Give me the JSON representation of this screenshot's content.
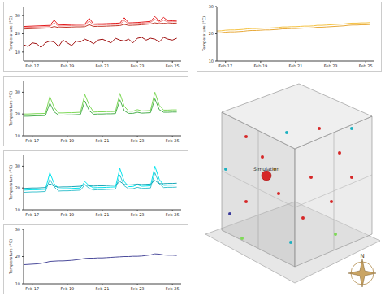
{
  "chart_data": [
    {
      "type": "line",
      "ylabel": "Temperature (°C)",
      "grid": false,
      "x": [
        16.5,
        16.75,
        17,
        17.25,
        17.5,
        17.75,
        18,
        18.25,
        18.5,
        18.75,
        19,
        19.25,
        19.5,
        19.75,
        20,
        20.25,
        20.5,
        20.75,
        21,
        21.25,
        21.5,
        21.75,
        22,
        22.25,
        22.5,
        22.75,
        23,
        23.25,
        23.5,
        23.75,
        24,
        24.25,
        24.5,
        24.75,
        25,
        25.25
      ],
      "xlim": [
        16.5,
        25.5
      ],
      "xticks": [
        {
          "value": 17,
          "label": "Feb 17"
        },
        {
          "value": 19,
          "label": "Feb 19"
        },
        {
          "value": 21,
          "label": "Feb 21"
        },
        {
          "value": 23,
          "label": "Feb 23"
        },
        {
          "value": 25,
          "label": "Feb 25"
        }
      ],
      "ylim": [
        5,
        35
      ],
      "yticks": [
        10,
        20,
        30
      ],
      "series": [
        {
          "color": "#e31a1c",
          "values": [
            24,
            24.1,
            24.2,
            24.3,
            24.4,
            24.5,
            24.6,
            27.5,
            24.8,
            24.9,
            25,
            25.1,
            25.2,
            25.2,
            25.3,
            28.5,
            25.4,
            25.5,
            25.5,
            25.6,
            25.7,
            25.8,
            25.9,
            28.8,
            26,
            26.1,
            26.2,
            26.4,
            26.6,
            26.8,
            29.5,
            27,
            29,
            27,
            27.2,
            27.3
          ]
        },
        {
          "color": "#f08080",
          "values": [
            23.4,
            23.5,
            23.6,
            23.7,
            23.8,
            23.9,
            24,
            26,
            24.2,
            24.3,
            24.4,
            24.5,
            24.6,
            24.6,
            24.7,
            27,
            24.8,
            24.9,
            24.9,
            25,
            25.1,
            25.2,
            25.3,
            27.2,
            25.4,
            25.5,
            25.6,
            25.8,
            26,
            26.2,
            28,
            26.4,
            27.5,
            26.4,
            26.6,
            26.7
          ]
        },
        {
          "color": "#c0392b",
          "values": [
            22.6,
            22.7,
            22.8,
            22.9,
            23,
            23.1,
            23.2,
            24,
            23.4,
            23.5,
            23.6,
            23.7,
            23.8,
            23.8,
            23.9,
            25,
            24,
            24.1,
            24.1,
            24.2,
            24.3,
            24.4,
            24.5,
            25.2,
            24.6,
            24.7,
            24.8,
            25,
            25.2,
            25.4,
            26,
            25.6,
            25.8,
            25.6,
            25.8,
            25.9
          ]
        },
        {
          "color": "#a01010",
          "values": [
            14,
            13,
            15,
            14.5,
            12.5,
            15,
            16,
            15.5,
            13,
            16.5,
            15,
            13.5,
            16,
            15.5,
            17,
            16,
            14.5,
            16.5,
            17,
            16,
            15,
            17.5,
            16.5,
            16,
            17,
            15,
            17.5,
            18,
            16.5,
            17.5,
            17,
            15.5,
            18,
            17,
            16.5,
            17.5
          ]
        }
      ]
    },
    {
      "type": "line",
      "ylabel": "Temperature (°C)",
      "grid": false,
      "x": [
        16.5,
        16.75,
        17,
        17.25,
        17.5,
        17.75,
        18,
        18.25,
        18.5,
        18.75,
        19,
        19.25,
        19.5,
        19.75,
        20,
        20.25,
        20.5,
        20.75,
        21,
        21.25,
        21.5,
        21.75,
        22,
        22.25,
        22.5,
        22.75,
        23,
        23.25,
        23.5,
        23.75,
        24,
        24.25,
        24.5,
        24.75,
        25,
        25.25
      ],
      "xlim": [
        16.5,
        25.5
      ],
      "xticks": [
        {
          "value": 17,
          "label": "Feb 17"
        },
        {
          "value": 19,
          "label": "Feb 19"
        },
        {
          "value": 21,
          "label": "Feb 21"
        },
        {
          "value": 23,
          "label": "Feb 23"
        },
        {
          "value": 25,
          "label": "Feb 25"
        }
      ],
      "ylim": [
        10,
        30
      ],
      "yticks": [
        10,
        20,
        30
      ],
      "series": [
        {
          "color": "#f5c242",
          "values": [
            21,
            21.1,
            21.3,
            21.4,
            21.4,
            21.5,
            21.6,
            21.8,
            21.9,
            21.9,
            22,
            22.1,
            22.1,
            22.2,
            22.3,
            22.5,
            22.5,
            22.6,
            22.6,
            22.7,
            22.8,
            22.8,
            22.9,
            23.1,
            23.1,
            23.2,
            23.3,
            23.4,
            23.5,
            23.6,
            23.8,
            23.9,
            23.9,
            24,
            24,
            24.1
          ]
        },
        {
          "color": "#e8a93a",
          "values": [
            20.3,
            20.4,
            20.6,
            20.7,
            20.7,
            20.8,
            20.9,
            21.1,
            21.2,
            21.2,
            21.3,
            21.4,
            21.4,
            21.5,
            21.6,
            21.8,
            21.8,
            21.9,
            21.9,
            22,
            22.1,
            22.1,
            22.2,
            22.4,
            22.4,
            22.5,
            22.6,
            22.7,
            22.8,
            22.9,
            23.1,
            23.2,
            23.2,
            23.3,
            23.3,
            23.4
          ]
        }
      ]
    },
    {
      "type": "line",
      "ylabel": "Temperature (°C)",
      "grid": false,
      "x": [
        16.5,
        16.75,
        17,
        17.25,
        17.5,
        17.75,
        18,
        18.25,
        18.5,
        18.75,
        19,
        19.25,
        19.5,
        19.75,
        20,
        20.25,
        20.5,
        20.75,
        21,
        21.25,
        21.5,
        21.75,
        22,
        22.25,
        22.5,
        22.75,
        23,
        23.25,
        23.5,
        23.75,
        24,
        24.25,
        24.5,
        24.75,
        25,
        25.25
      ],
      "xlim": [
        16.5,
        25.5
      ],
      "xticks": [
        {
          "value": 17,
          "label": "Feb 17"
        },
        {
          "value": 19,
          "label": "Feb 19"
        },
        {
          "value": 21,
          "label": "Feb 21"
        },
        {
          "value": 23,
          "label": "Feb 23"
        },
        {
          "value": 25,
          "label": "Feb 25"
        }
      ],
      "ylim": [
        10,
        35
      ],
      "yticks": [
        10,
        20,
        30
      ],
      "series": [
        {
          "color": "#7ed957",
          "values": [
            20,
            20,
            20.1,
            20.2,
            20.2,
            20.3,
            28,
            23,
            20.5,
            20.5,
            20.6,
            20.6,
            20.7,
            20.8,
            29,
            24,
            20.9,
            21,
            21,
            21.1,
            21.1,
            21.2,
            29.5,
            23.5,
            21.3,
            21.3,
            22,
            21.4,
            21.5,
            21.6,
            30,
            24,
            21.8,
            21.8,
            21.9,
            21.9
          ]
        },
        {
          "color": "#4caf50",
          "values": [
            19,
            19,
            19.1,
            19.2,
            19.2,
            19.3,
            25,
            21,
            19.5,
            19.5,
            19.6,
            19.6,
            19.7,
            19.8,
            26,
            21.5,
            19.9,
            20,
            20,
            20.1,
            20.1,
            20.2,
            26.5,
            21.5,
            20.3,
            20.3,
            20.8,
            20.4,
            20.5,
            20.6,
            27,
            22,
            20.8,
            20.8,
            20.9,
            20.9
          ]
        }
      ]
    },
    {
      "type": "line",
      "ylabel": "Temperature (°C)",
      "grid": false,
      "x": [
        16.5,
        16.75,
        17,
        17.25,
        17.5,
        17.75,
        18,
        18.25,
        18.5,
        18.75,
        19,
        19.25,
        19.5,
        19.75,
        20,
        20.25,
        20.5,
        20.75,
        21,
        21.25,
        21.5,
        21.75,
        22,
        22.25,
        22.5,
        22.75,
        23,
        23.25,
        23.5,
        23.75,
        24,
        24.25,
        24.5,
        24.75,
        25,
        25.25
      ],
      "xlim": [
        16.5,
        25.5
      ],
      "xticks": [
        {
          "value": 17,
          "label": "Feb 17"
        },
        {
          "value": 19,
          "label": "Feb 19"
        },
        {
          "value": 21,
          "label": "Feb 21"
        },
        {
          "value": 23,
          "label": "Feb 23"
        },
        {
          "value": 25,
          "label": "Feb 25"
        }
      ],
      "ylim": [
        10,
        35
      ],
      "yticks": [
        10,
        20,
        30
      ],
      "series": [
        {
          "color": "#00e5ee",
          "values": [
            19,
            19.1,
            19.2,
            19.2,
            19.3,
            19.4,
            27,
            22,
            19.6,
            19.7,
            19.7,
            19.8,
            19.9,
            20,
            23,
            21,
            20.1,
            20.2,
            20.2,
            20.3,
            20.4,
            20.5,
            29,
            23,
            20.6,
            20.7,
            21.5,
            20.8,
            20.9,
            21,
            30,
            24,
            21.2,
            21.3,
            21.3,
            21.4
          ]
        },
        {
          "color": "#40c4d0",
          "values": [
            18,
            18.1,
            18.2,
            18.2,
            18.3,
            18.4,
            24,
            20.5,
            18.6,
            18.7,
            18.7,
            18.8,
            18.9,
            19,
            21.5,
            19.8,
            19.1,
            19.2,
            19.2,
            19.3,
            19.4,
            19.5,
            26,
            21,
            19.6,
            19.7,
            20.3,
            19.8,
            19.9,
            20,
            27,
            22,
            20.2,
            20.3,
            20.3,
            20.4
          ]
        },
        {
          "color": "#1aa8b8",
          "values": [
            19.8,
            19.9,
            20,
            20,
            20.1,
            20.2,
            22,
            20.8,
            20.4,
            20.5,
            20.5,
            20.6,
            20.7,
            20.8,
            21.5,
            21,
            20.9,
            21,
            21,
            21.1,
            21.2,
            21.3,
            23,
            21.6,
            21.4,
            21.5,
            21.8,
            21.6,
            21.7,
            21.8,
            23.5,
            22,
            22,
            22.1,
            22.1,
            22.2
          ]
        }
      ]
    },
    {
      "type": "line",
      "ylabel": "Temperature (°C)",
      "grid": false,
      "x": [
        16.5,
        16.75,
        17,
        17.25,
        17.5,
        17.75,
        18,
        18.25,
        18.5,
        18.75,
        19,
        19.25,
        19.5,
        19.75,
        20,
        20.25,
        20.5,
        20.75,
        21,
        21.25,
        21.5,
        21.75,
        22,
        22.25,
        22.5,
        22.75,
        23,
        23.25,
        23.5,
        23.75,
        24,
        24.25,
        24.5,
        24.75,
        25,
        25.25
      ],
      "xlim": [
        16.5,
        25.5
      ],
      "xticks": [
        {
          "value": 17,
          "label": "Feb 17"
        },
        {
          "value": 19,
          "label": "Feb 19"
        },
        {
          "value": 21,
          "label": "Feb 21"
        },
        {
          "value": 23,
          "label": "Feb 23"
        },
        {
          "value": 25,
          "label": "Feb 25"
        }
      ],
      "ylim": [
        10,
        30
      ],
      "yticks": [
        10,
        20,
        30
      ],
      "series": [
        {
          "color": "#4b4b9b",
          "values": [
            17,
            17.1,
            17.2,
            17.3,
            17.5,
            17.8,
            18.2,
            18.3,
            18.4,
            18.4,
            18.5,
            18.6,
            18.8,
            19,
            19.3,
            19.4,
            19.4,
            19.5,
            19.5,
            19.6,
            19.7,
            19.8,
            19.9,
            20,
            20,
            20.1,
            20.1,
            20.2,
            20.4,
            20.6,
            21,
            20.9,
            20.6,
            20.5,
            20.5,
            20.4
          ]
        }
      ]
    }
  ],
  "diagram": {
    "label": "Simulation",
    "compass": "N"
  }
}
